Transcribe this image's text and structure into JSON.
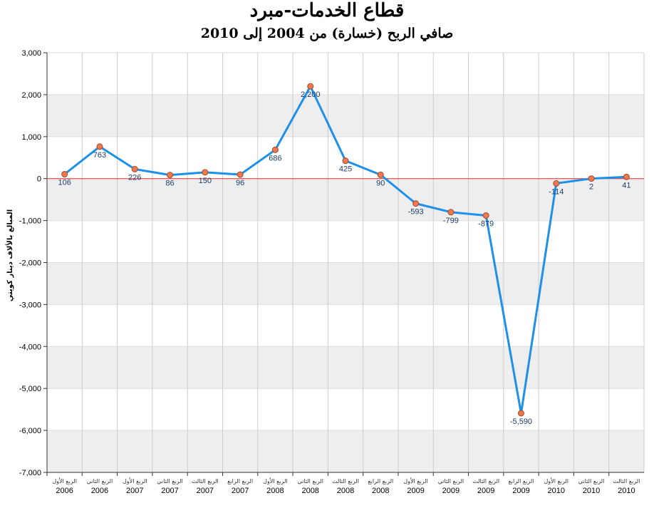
{
  "chart_data": {
    "type": "line",
    "title": "قطاع الخدمات-مبرد",
    "subtitle": "صافي الربح (خسارة) من 2004 إلى 2010",
    "ylabel": "المبالغ بالألاف دينار كويتي",
    "xlabel": "",
    "ylim": [
      -7000,
      3000
    ],
    "yticks": [
      3000,
      2000,
      1000,
      0,
      -1000,
      -2000,
      -3000,
      -4000,
      -5000,
      -6000,
      -7000
    ],
    "ytick_labels": [
      "3,000",
      "2,000",
      "1,000",
      "0",
      "-1,000",
      "-2,000",
      "-3,000",
      "-4,000",
      "-5,000",
      "-6,000",
      "-7,000"
    ],
    "grid": "vertical and horizontal bands",
    "categories": [
      {
        "quarter": "الربع الأول",
        "year": "2006"
      },
      {
        "quarter": "الربع الثاني",
        "year": "2006"
      },
      {
        "quarter": "الربع الأول",
        "year": "2007"
      },
      {
        "quarter": "الربع الثاني",
        "year": "2007"
      },
      {
        "quarter": "الربع الثالث",
        "year": "2007"
      },
      {
        "quarter": "الربع الرابع",
        "year": "2007"
      },
      {
        "quarter": "الربع الأول",
        "year": "2008"
      },
      {
        "quarter": "الربع الثاني",
        "year": "2008"
      },
      {
        "quarter": "الربع الثالث",
        "year": "2008"
      },
      {
        "quarter": "الربع الرابع",
        "year": "2008"
      },
      {
        "quarter": "الربع الأول",
        "year": "2009"
      },
      {
        "quarter": "الربع الثاني",
        "year": "2009"
      },
      {
        "quarter": "الربع الثالث",
        "year": "2009"
      },
      {
        "quarter": "الربع الرابع",
        "year": "2009"
      },
      {
        "quarter": "الربع الأول",
        "year": "2010"
      },
      {
        "quarter": "الربع الثاني",
        "year": "2010"
      },
      {
        "quarter": "الربع الثالث",
        "year": "2010"
      }
    ],
    "values": [
      106,
      763,
      226,
      86,
      150,
      96,
      686,
      2200,
      425,
      90,
      -593,
      -799,
      -879,
      -5590,
      -114,
      2,
      41
    ],
    "value_labels": [
      "106",
      "763",
      "226",
      "86",
      "150",
      "96",
      "686",
      "2,200",
      "425",
      "90",
      "-593",
      "-799",
      "-879",
      "-5,590",
      "-114",
      "2",
      "41"
    ],
    "colors": {
      "line": "#1e90e8",
      "marker_fill": "#f07850",
      "marker_stroke": "#a04a2a",
      "zero_line": "#e03030",
      "band": "#eeeeee",
      "grid": "#cccccc",
      "label": "#1d3d6b"
    }
  }
}
